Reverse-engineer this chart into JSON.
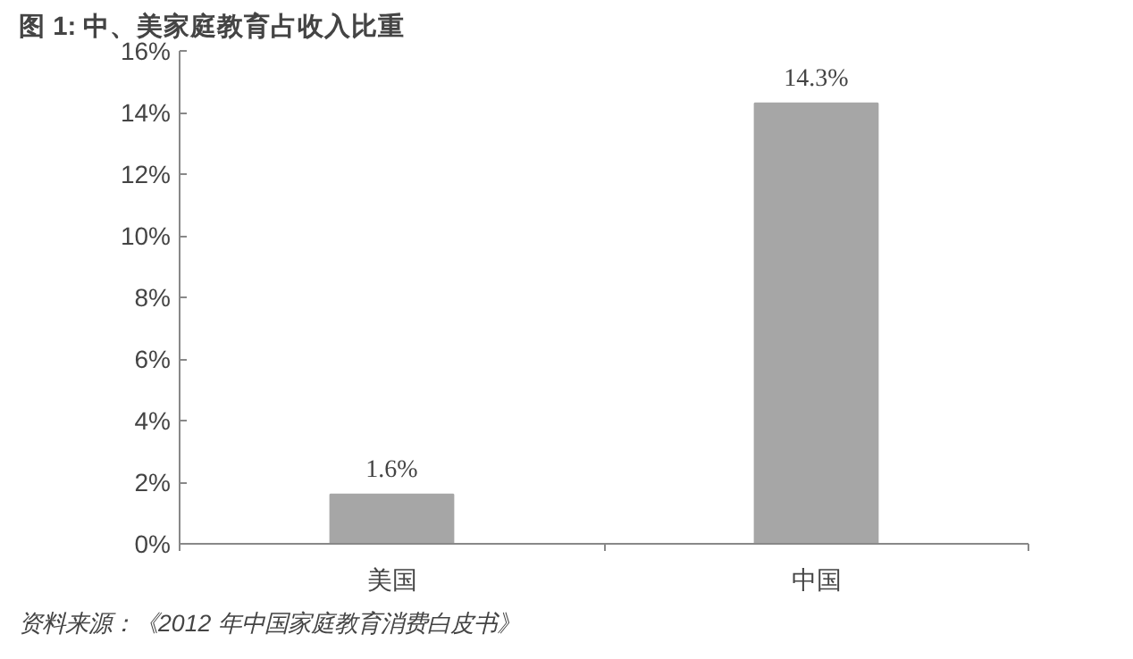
{
  "chart_data": {
    "type": "bar",
    "title": "图 1:    中、美家庭教育占收入比重",
    "categories": [
      "美国",
      "中国"
    ],
    "values": [
      1.6,
      14.3
    ],
    "color": "#a6a6a6",
    "value_labels": [
      "1.6%",
      "14.3%"
    ],
    "ylim": [
      0,
      16
    ],
    "yticks": [
      {
        "value": 0,
        "label": "0%"
      },
      {
        "value": 2,
        "label": "2%"
      },
      {
        "value": 4,
        "label": "4%"
      },
      {
        "value": 6,
        "label": "6%"
      },
      {
        "value": 8,
        "label": "8%"
      },
      {
        "value": 10,
        "label": "10%"
      },
      {
        "value": 12,
        "label": "12%"
      },
      {
        "value": 14,
        "label": "14%"
      },
      {
        "value": 16,
        "label": "16%"
      }
    ],
    "grid": false,
    "annotations": [
      "资料来源：《2012 年中国家庭教育消费白皮书》"
    ]
  }
}
